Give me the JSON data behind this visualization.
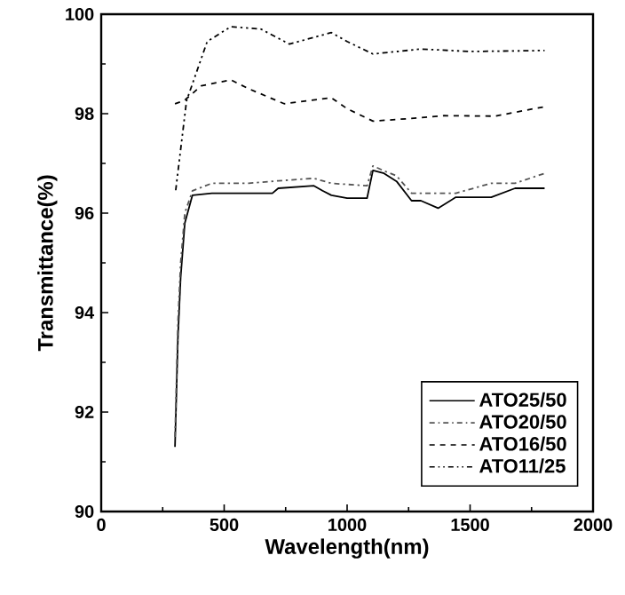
{
  "chart_data": {
    "type": "line",
    "xlabel": "Wavelength(nm)",
    "ylabel": "Transmittance(%)",
    "xlim": [
      0,
      2000
    ],
    "ylim": [
      90,
      100
    ],
    "xticks": [
      0,
      500,
      1000,
      1500,
      2000
    ],
    "yticks": [
      90,
      92,
      94,
      96,
      98,
      100
    ],
    "grid": false,
    "legend": "bottom right",
    "marker": "none",
    "series": [
      {
        "name": "ATO25/50",
        "color": "#000000",
        "line_style": "solid",
        "x": [
          300,
          312,
          323,
          340,
          371,
          450,
          600,
          696,
          720,
          865,
          900,
          936,
          1000,
          1081,
          1105,
          1150,
          1201,
          1262,
          1300,
          1370,
          1442,
          1586,
          1683,
          1803
        ],
        "values": [
          91.3,
          93.5,
          94.7,
          95.8,
          96.36,
          96.4,
          96.4,
          96.4,
          96.5,
          96.55,
          96.45,
          96.36,
          96.3,
          96.3,
          96.86,
          96.8,
          96.64,
          96.25,
          96.25,
          96.1,
          96.32,
          96.32,
          96.5,
          96.5
        ]
      },
      {
        "name": "ATO20/50",
        "color": "#555555",
        "line_style": "dashdot",
        "x": [
          300,
          312,
          323,
          340,
          371,
          450,
          600,
          720,
          865,
          936,
          1081,
          1105,
          1150,
          1201,
          1262,
          1370,
          1442,
          1586,
          1683,
          1803
        ],
        "values": [
          91.5,
          93.8,
          95.0,
          96.0,
          96.45,
          96.6,
          96.6,
          96.65,
          96.7,
          96.6,
          96.55,
          96.95,
          96.85,
          96.75,
          96.4,
          96.4,
          96.4,
          96.6,
          96.6,
          96.8
        ]
      },
      {
        "name": "ATO16/50",
        "color": "#000000",
        "line_style": "dashed",
        "x": [
          300,
          337,
          407,
          527,
          600,
          744,
          936,
          1000,
          1105,
          1250,
          1394,
          1600,
          1803
        ],
        "values": [
          98.2,
          98.26,
          98.56,
          98.68,
          98.5,
          98.2,
          98.32,
          98.1,
          97.85,
          97.9,
          97.96,
          97.95,
          98.14
        ]
      },
      {
        "name": "ATO11/25",
        "color": "#000000",
        "line_style": "dashdotdot",
        "x": [
          303,
          347,
          431,
          527,
          650,
          765,
          936,
          1000,
          1105,
          1300,
          1500,
          1803
        ],
        "values": [
          96.46,
          98.26,
          99.45,
          99.75,
          99.7,
          99.4,
          99.63,
          99.45,
          99.2,
          99.3,
          99.25,
          99.27
        ]
      }
    ]
  }
}
